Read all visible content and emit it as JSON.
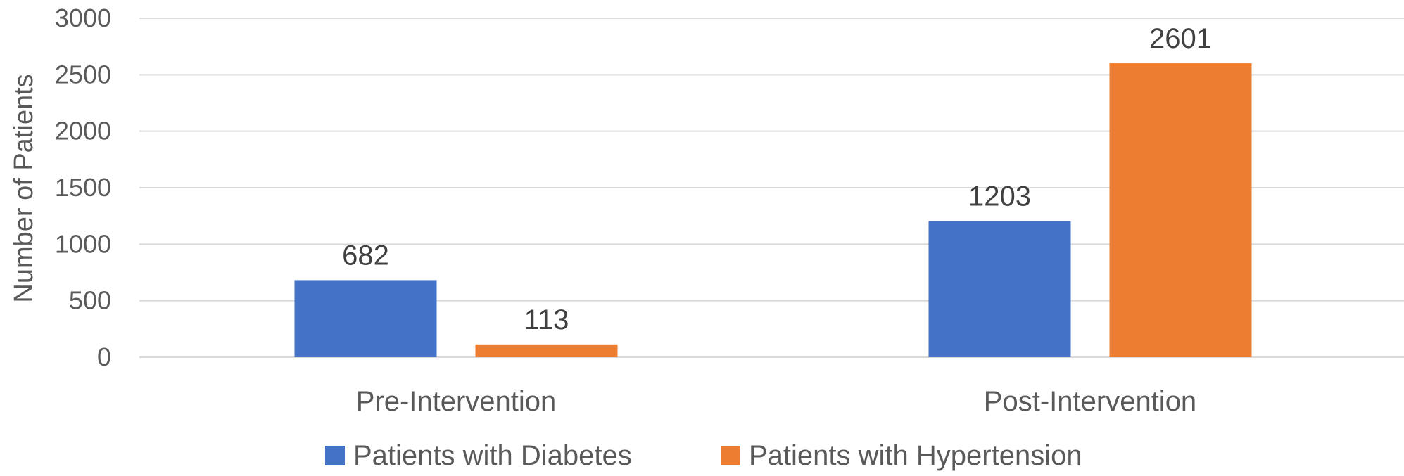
{
  "chart_data": {
    "type": "bar",
    "ylabel": "Number of Patients",
    "ylim": [
      0,
      3000
    ],
    "yticks": [
      0,
      500,
      1000,
      1500,
      2000,
      2500,
      3000
    ],
    "categories": [
      "Pre-Intervention",
      "Post-Intervention"
    ],
    "series": [
      {
        "name": "Patients with Diabetes",
        "color": "#4472C4",
        "values": [
          682,
          1203
        ]
      },
      {
        "name": "Patients with Hypertension",
        "color": "#ED7D31",
        "values": [
          113,
          2601
        ]
      }
    ],
    "grid": true,
    "legend_position": "bottom",
    "data_labels": true
  }
}
